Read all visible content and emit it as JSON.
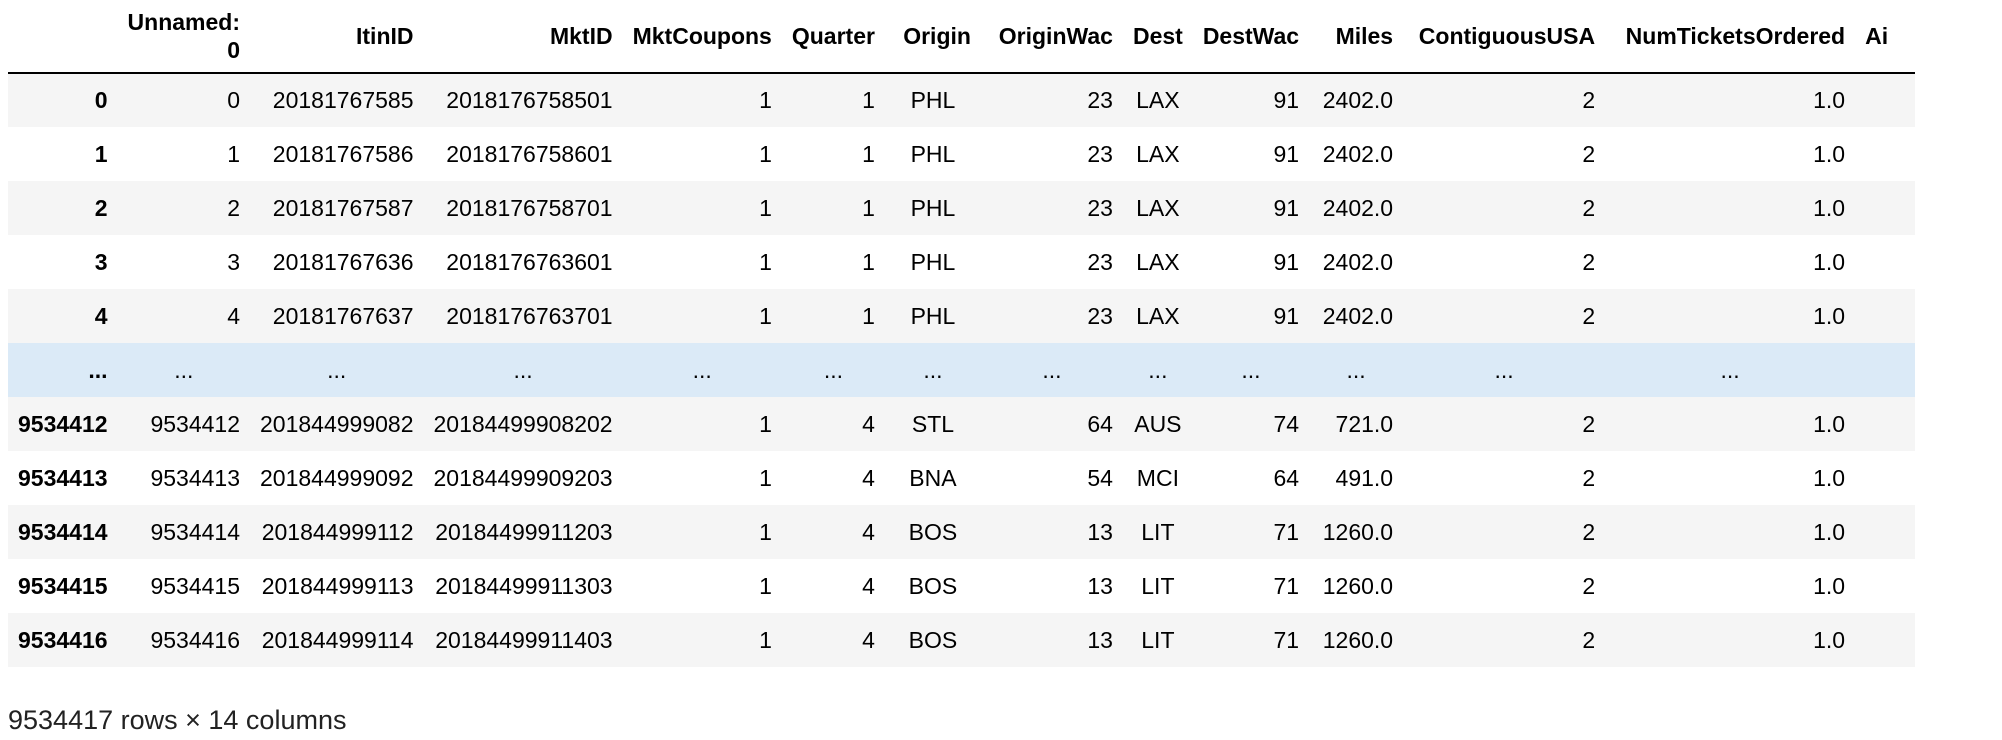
{
  "table": {
    "columns": [
      "",
      "Unnamed:\n0",
      "ItinID",
      "MktID",
      "MktCoupons",
      "Quarter",
      "Origin",
      "OriginWac",
      "Dest",
      "DestWac",
      "Miles",
      "ContiguousUSA",
      "NumTicketsOrdered",
      "Ai"
    ],
    "rows": [
      [
        "0",
        "0",
        "20181767585",
        "2018176758501",
        "1",
        "1",
        "PHL",
        "23",
        "LAX",
        "91",
        "2402.0",
        "2",
        "1.0",
        ""
      ],
      [
        "1",
        "1",
        "20181767586",
        "2018176758601",
        "1",
        "1",
        "PHL",
        "23",
        "LAX",
        "91",
        "2402.0",
        "2",
        "1.0",
        ""
      ],
      [
        "2",
        "2",
        "20181767587",
        "2018176758701",
        "1",
        "1",
        "PHL",
        "23",
        "LAX",
        "91",
        "2402.0",
        "2",
        "1.0",
        ""
      ],
      [
        "3",
        "3",
        "20181767636",
        "2018176763601",
        "1",
        "1",
        "PHL",
        "23",
        "LAX",
        "91",
        "2402.0",
        "2",
        "1.0",
        ""
      ],
      [
        "4",
        "4",
        "20181767637",
        "2018176763701",
        "1",
        "1",
        "PHL",
        "23",
        "LAX",
        "91",
        "2402.0",
        "2",
        "1.0",
        ""
      ],
      [
        "...",
        "...",
        "...",
        "...",
        "...",
        "...",
        "...",
        "...",
        "...",
        "...",
        "...",
        "...",
        "...",
        ""
      ],
      [
        "9534412",
        "9534412",
        "201844999082",
        "20184499908202",
        "1",
        "4",
        "STL",
        "64",
        "AUS",
        "74",
        "721.0",
        "2",
        "1.0",
        ""
      ],
      [
        "9534413",
        "9534413",
        "201844999092",
        "20184499909203",
        "1",
        "4",
        "BNA",
        "54",
        "MCI",
        "64",
        "491.0",
        "2",
        "1.0",
        ""
      ],
      [
        "9534414",
        "9534414",
        "201844999112",
        "20184499911203",
        "1",
        "4",
        "BOS",
        "13",
        "LIT",
        "71",
        "1260.0",
        "2",
        "1.0",
        ""
      ],
      [
        "9534415",
        "9534415",
        "201844999113",
        "20184499911303",
        "1",
        "4",
        "BOS",
        "13",
        "LIT",
        "71",
        "1260.0",
        "2",
        "1.0",
        ""
      ],
      [
        "9534416",
        "9534416",
        "201844999114",
        "20184499911403",
        "1",
        "4",
        "BOS",
        "13",
        "LIT",
        "71",
        "1260.0",
        "2",
        "1.0",
        ""
      ]
    ]
  },
  "footer": {
    "summary": "9534417 rows × 14 columns"
  },
  "colors": {
    "row_stripe": "#f5f5f5",
    "ellipsis_row": "#dbeaf7",
    "header_rule": "#000000"
  }
}
